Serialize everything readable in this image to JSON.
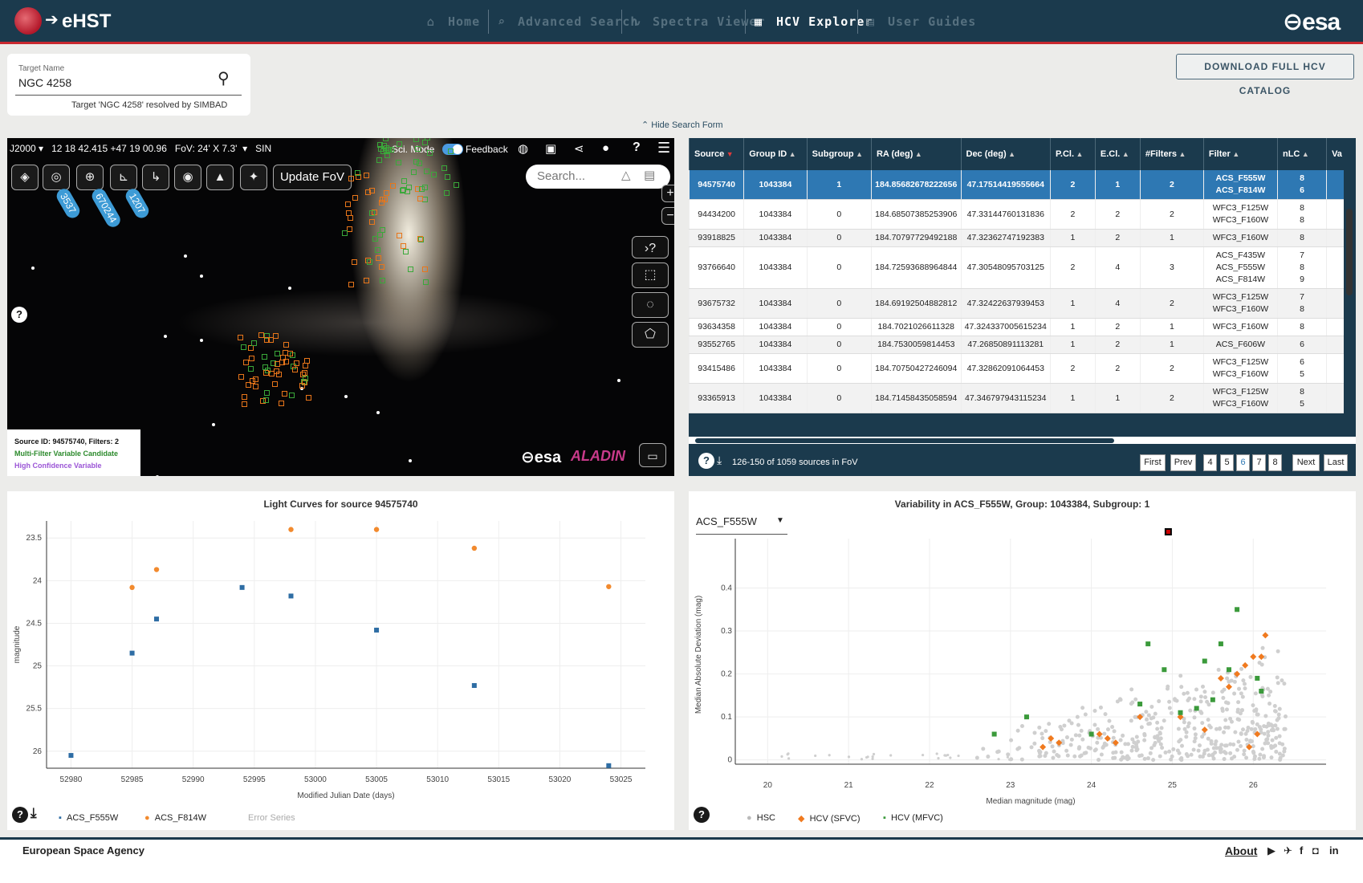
{
  "header": {
    "app_name": "eHST",
    "nav": [
      "Home",
      "Advanced Search",
      "Spectra Viewer",
      "HCV Explorer",
      "User Guides"
    ],
    "active": "HCV Explorer",
    "esa": "esa"
  },
  "search": {
    "label": "Target Name",
    "value": "NGC 4258",
    "resolved": "Target 'NGC 4258' resolved by SIMBAD"
  },
  "download_label": "DOWNLOAD FULL HCV CATALOG",
  "hide_label": "Hide Search Form",
  "sky": {
    "frame": "J2000",
    "coords": "12 18 42.415 +47 19 00.96",
    "fov": "FoV: 24' X 7.3'",
    "proj": "SIN",
    "sci_mode": "Sci. Mode",
    "feedback": "Feedback",
    "update_fov": "Update FoV",
    "search_ph": "Search...",
    "badges": [
      "3537",
      "670244",
      "1207"
    ],
    "legend_src": "Source ID: 94575740, Filters: 2",
    "legend_mfvc": "Multi-Filter Variable Candidate",
    "legend_hcv": "High Confidence Variable",
    "esa": "esa",
    "aladin": "ALADIN"
  },
  "table": {
    "headers": [
      "Source",
      "Group ID",
      "Subgroup",
      "RA (deg)",
      "Dec (deg)",
      "P.Cl.",
      "E.Cl.",
      "#Filters",
      "Filter",
      "nLC",
      "Va"
    ],
    "rows": [
      [
        "94575740",
        "1043384",
        "1",
        "184.85682678222656",
        "47.17514419555664",
        "2",
        "1",
        "2",
        "ACS_F555W\nACS_F814W",
        "8\n6"
      ],
      [
        "94434200",
        "1043384",
        "0",
        "184.68507385253906",
        "47.33144760131836",
        "2",
        "2",
        "2",
        "WFC3_F125W\nWFC3_F160W",
        "8\n8"
      ],
      [
        "93918825",
        "1043384",
        "0",
        "184.70797729492188",
        "47.32362747192383",
        "1",
        "2",
        "1",
        "WFC3_F160W",
        "8"
      ],
      [
        "93766640",
        "1043384",
        "0",
        "184.72593688964844",
        "47.30548095703125",
        "2",
        "4",
        "3",
        "ACS_F435W\nACS_F555W\nACS_F814W",
        "7\n8\n9"
      ],
      [
        "93675732",
        "1043384",
        "0",
        "184.69192504882812",
        "47.32422637939453",
        "1",
        "4",
        "2",
        "WFC3_F125W\nWFC3_F160W",
        "7\n8"
      ],
      [
        "93634358",
        "1043384",
        "0",
        "184.7021026611328",
        "47.324337005615234",
        "1",
        "2",
        "1",
        "WFC3_F160W",
        "8"
      ],
      [
        "93552765",
        "1043384",
        "0",
        "184.7530059814453",
        "47.26850891113281",
        "1",
        "2",
        "1",
        "ACS_F606W",
        "6"
      ],
      [
        "93415486",
        "1043384",
        "0",
        "184.70750427246094",
        "47.32862091064453",
        "2",
        "2",
        "2",
        "WFC3_F125W\nWFC3_F160W",
        "6\n5"
      ],
      [
        "93365913",
        "1043384",
        "0",
        "184.71458435058594",
        "47.346797943115234",
        "1",
        "1",
        "2",
        "WFC3_F125W\nWFC3_F160W",
        "8\n5"
      ]
    ],
    "status": "126-150 of 1059 sources in FoV",
    "pages": [
      "First",
      "Prev",
      "4",
      "5",
      "6",
      "7",
      "8",
      "Next",
      "Last"
    ]
  },
  "lc": {
    "title": "Light Curves for source 94575740",
    "xlabel": "Modified Julian Date (days)",
    "ylabel": "magnitude",
    "legend": [
      "ACS_F555W",
      "ACS_F814W",
      "Error Series"
    ]
  },
  "var": {
    "title": "Variability in ACS_F555W, Group: 1043384, Subgroup: 1",
    "filter": "ACS_F555W",
    "xlabel": "Median magnitude (mag)",
    "ylabel": "Median Absolute Deviation (mag)",
    "legend": [
      "HSC",
      "HCV (SFVC)",
      "HCV (MFVC)"
    ]
  },
  "chart_data": [
    {
      "type": "scatter",
      "title": "Light Curves for source 94575740",
      "xlabel": "Modified Julian Date (days)",
      "ylabel": "magnitude",
      "xlim": [
        52978,
        53027
      ],
      "ylim": [
        26.2,
        23.3
      ],
      "reversed_y": true,
      "series": [
        {
          "name": "ACS_F555W",
          "color": "#2e6da4",
          "x": [
            52980,
            52985,
            52987,
            52994,
            52998,
            53005,
            53013,
            53024
          ],
          "y": [
            26.05,
            24.85,
            24.45,
            24.08,
            24.18,
            24.58,
            25.23,
            26.17
          ]
        },
        {
          "name": "ACS_F814W",
          "color": "#f28a2e",
          "x": [
            52985,
            52987,
            52998,
            53005,
            53013,
            53024
          ],
          "y": [
            24.08,
            23.87,
            23.4,
            23.4,
            23.62,
            24.07
          ]
        }
      ]
    },
    {
      "type": "scatter",
      "title": "Variability in ACS_F555W, Group: 1043384, Subgroup: 1",
      "xlabel": "Median magnitude (mag)",
      "ylabel": "Median Absolute Deviation (mag)",
      "xlim": [
        19.6,
        26.9
      ],
      "ylim": [
        -0.01,
        0.5
      ],
      "series": [
        {
          "name": "HCV (SFVC)",
          "color": "#f07a1f",
          "x": [
            23.4,
            23.5,
            23.6,
            24.1,
            24.2,
            24.3,
            24.6,
            25.1,
            25.4,
            25.6,
            25.7,
            25.8,
            25.9,
            26.0,
            26.1,
            26.15,
            25.95,
            26.05
          ],
          "y": [
            0.03,
            0.05,
            0.04,
            0.06,
            0.05,
            0.04,
            0.1,
            0.1,
            0.07,
            0.19,
            0.17,
            0.2,
            0.22,
            0.24,
            0.24,
            0.29,
            0.03,
            0.06
          ]
        },
        {
          "name": "HCV (MFVC)",
          "color": "#3b9a3b",
          "x": [
            22.8,
            23.2,
            24.0,
            24.6,
            24.7,
            24.9,
            25.1,
            25.3,
            25.4,
            25.5,
            25.6,
            25.7,
            25.8,
            26.05,
            26.1
          ],
          "y": [
            0.06,
            0.1,
            0.06,
            0.13,
            0.27,
            0.21,
            0.11,
            0.12,
            0.23,
            0.14,
            0.27,
            0.21,
            0.35,
            0.19,
            0.16
          ]
        }
      ]
    }
  ],
  "footer": {
    "org": "European Space Agency",
    "about": "About"
  }
}
